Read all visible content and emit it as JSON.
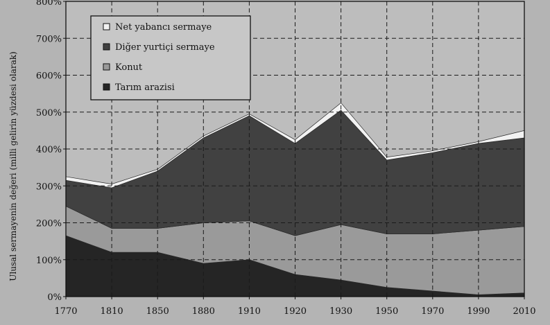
{
  "chart_data": {
    "type": "area",
    "stacked": true,
    "xlabel": "",
    "ylabel": "Ulusal sermayenin değeri (milli gelirin yüzdesi olarak)",
    "x": [
      1770,
      1810,
      1850,
      1880,
      1910,
      1920,
      1930,
      1950,
      1970,
      1990,
      2010
    ],
    "x_ticks": [
      "1770",
      "1810",
      "1850",
      "1880",
      "1910",
      "1920",
      "1930",
      "1950",
      "1970",
      "1990",
      "2010"
    ],
    "y_ticks": [
      "0%",
      "100%",
      "200%",
      "300%",
      "400%",
      "500%",
      "600%",
      "700%",
      "800%"
    ],
    "ylim": [
      0,
      800
    ],
    "grid": true,
    "legend_position": "top-left",
    "series": [
      {
        "name": "Tarım arazisi",
        "color": "#252525",
        "values": [
          165,
          120,
          120,
          90,
          100,
          60,
          45,
          25,
          15,
          5,
          10
        ]
      },
      {
        "name": "Konut",
        "color": "#9a9a9a",
        "values": [
          80,
          65,
          65,
          110,
          105,
          105,
          150,
          145,
          155,
          175,
          180
        ]
      },
      {
        "name": "Diğer yurtiçi sermaye",
        "color": "#414141",
        "values": [
          70,
          110,
          155,
          230,
          285,
          250,
          310,
          200,
          220,
          235,
          240
        ]
      },
      {
        "name": "Net yabancı sermaye",
        "color": "#f2f2f2",
        "values": [
          10,
          10,
          5,
          5,
          5,
          10,
          20,
          8,
          5,
          5,
          20
        ]
      }
    ]
  }
}
